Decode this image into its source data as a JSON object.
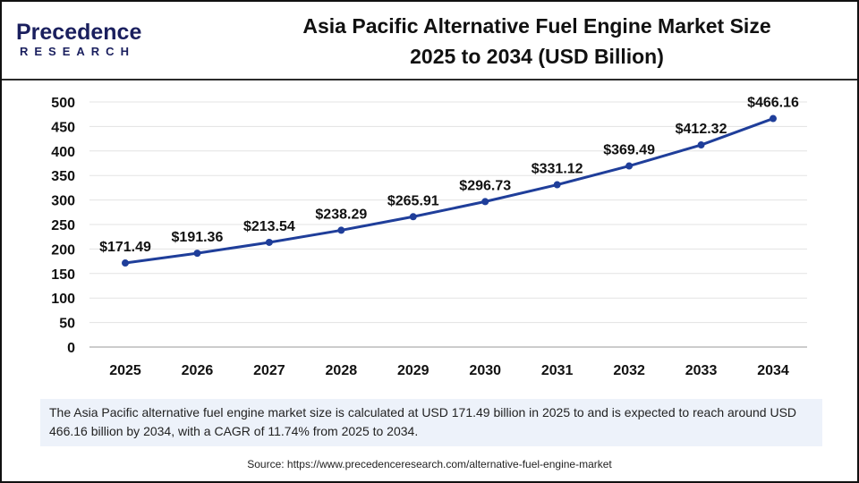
{
  "logo": {
    "line1": "Precedence",
    "line2": "RESEARCH"
  },
  "title": {
    "line1": "Asia Pacific Alternative Fuel Engine Market Size",
    "line2": "2025 to 2034 (USD Billion)"
  },
  "chart_data": {
    "type": "line",
    "categories": [
      "2025",
      "2026",
      "2027",
      "2028",
      "2029",
      "2030",
      "2031",
      "2032",
      "2033",
      "2034"
    ],
    "values": [
      171.49,
      191.36,
      213.54,
      238.29,
      265.91,
      296.73,
      331.12,
      369.49,
      412.32,
      466.16
    ],
    "data_labels": [
      "$171.49",
      "$191.36",
      "$213.54",
      "$238.29",
      "$265.91",
      "$296.73",
      "$331.12",
      "$369.49",
      "$412.32",
      "$466.16"
    ],
    "ylim": [
      0,
      500
    ],
    "yticks": [
      0,
      50,
      100,
      150,
      200,
      250,
      300,
      350,
      400,
      450,
      500
    ],
    "grid": true,
    "color": "#1f3e9a"
  },
  "note": "The Asia Pacific alternative fuel engine market size is calculated at USD 171.49 billion in 2025 to and is expected to reach around USD 466.16 billion by 2034, with a CAGR of 11.74% from 2025 to 2034.",
  "source": "Source: https://www.precedenceresearch.com/alternative-fuel-engine-market"
}
